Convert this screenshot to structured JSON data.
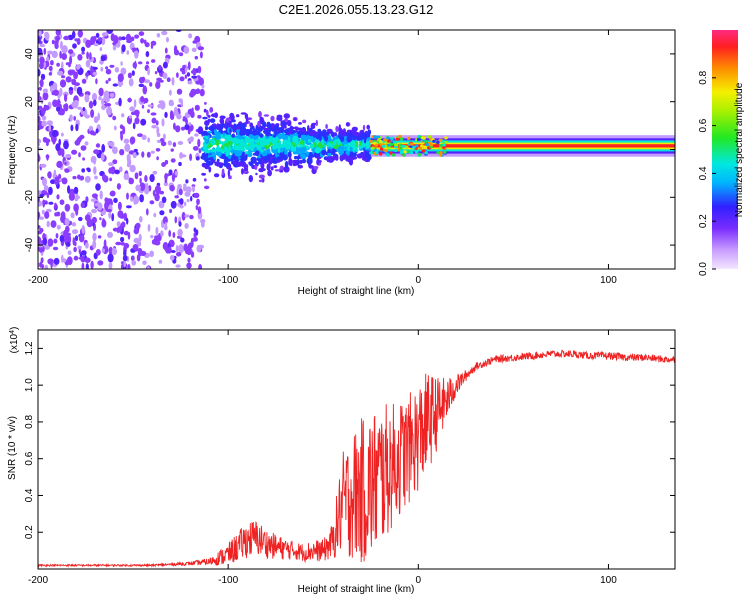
{
  "title": "C2E1.2026.055.13.23.G12",
  "chart_data": [
    {
      "type": "heatmap",
      "xlabel": "Height of straight line (km)",
      "ylabel": "Frequency (Hz)",
      "xlim": [
        -200,
        135
      ],
      "ylim": [
        -50,
        50
      ],
      "xticks": [
        -200,
        -100,
        0,
        100
      ],
      "yticks": [
        -40,
        -20,
        0,
        20,
        40
      ],
      "colorbar": {
        "label": "Normalized spectral amplitude",
        "range": [
          0,
          1
        ],
        "ticks": [
          0.0,
          0.2,
          0.4,
          0.6,
          0.8
        ]
      },
      "regions": [
        {
          "x": [
            -200,
            -113
          ],
          "freq_spread": [
            -50,
            50
          ],
          "amplitude": [
            0.05,
            0.2
          ],
          "description": "noise"
        },
        {
          "x": [
            -113,
            -25
          ],
          "center_freq": 2,
          "freq_spread": [
            -22,
            18
          ],
          "amplitude": [
            0.1,
            0.45
          ]
        },
        {
          "x": [
            -25,
            135
          ],
          "center_freq": 1.5,
          "freq_spread": [
            -3,
            3
          ],
          "amplitude": [
            0.5,
            0.95
          ]
        }
      ]
    },
    {
      "type": "line",
      "xlabel": "Height of straight line (km)",
      "ylabel": "SNR (10 * v/v)",
      "y_scale_label": "(x10",
      "y_scale_exp": "4",
      "xlim": [
        -200,
        135
      ],
      "ylim": [
        0,
        1.3
      ],
      "xticks": [
        -200,
        -100,
        0,
        100
      ],
      "yticks": [
        0.2,
        0.4,
        0.6,
        0.8,
        1.0,
        1.2
      ],
      "series": [
        {
          "name": "SNR",
          "color": "#ee2222",
          "x": [
            -200,
            -180,
            -160,
            -140,
            -120,
            -110,
            -105,
            -100,
            -95,
            -90,
            -85,
            -80,
            -75,
            -70,
            -65,
            -60,
            -55,
            -50,
            -45,
            -40,
            -35,
            -30,
            -25,
            -20,
            -15,
            -10,
            -5,
            0,
            5,
            10,
            15,
            20,
            25,
            30,
            40,
            50,
            60,
            70,
            80,
            90,
            100,
            110,
            120,
            130,
            135
          ],
          "values": [
            0.02,
            0.02,
            0.02,
            0.02,
            0.03,
            0.04,
            0.06,
            0.08,
            0.12,
            0.16,
            0.17,
            0.14,
            0.12,
            0.11,
            0.1,
            0.09,
            0.1,
            0.1,
            0.15,
            0.35,
            0.4,
            0.42,
            0.45,
            0.5,
            0.55,
            0.6,
            0.65,
            0.72,
            0.8,
            0.85,
            0.92,
            1.0,
            1.05,
            1.1,
            1.14,
            1.15,
            1.16,
            1.17,
            1.17,
            1.16,
            1.16,
            1.15,
            1.15,
            1.14,
            1.14
          ],
          "noise": [
            0.005,
            0.005,
            0.005,
            0.005,
            0.01,
            0.02,
            0.04,
            0.06,
            0.08,
            0.1,
            0.1,
            0.08,
            0.07,
            0.06,
            0.05,
            0.05,
            0.06,
            0.06,
            0.1,
            0.28,
            0.35,
            0.4,
            0.42,
            0.4,
            0.35,
            0.32,
            0.3,
            0.3,
            0.28,
            0.2,
            0.12,
            0.06,
            0.03,
            0.02,
            0.02,
            0.02,
            0.02,
            0.02,
            0.02,
            0.02,
            0.02,
            0.02,
            0.02,
            0.02,
            0.02
          ]
        }
      ]
    }
  ]
}
